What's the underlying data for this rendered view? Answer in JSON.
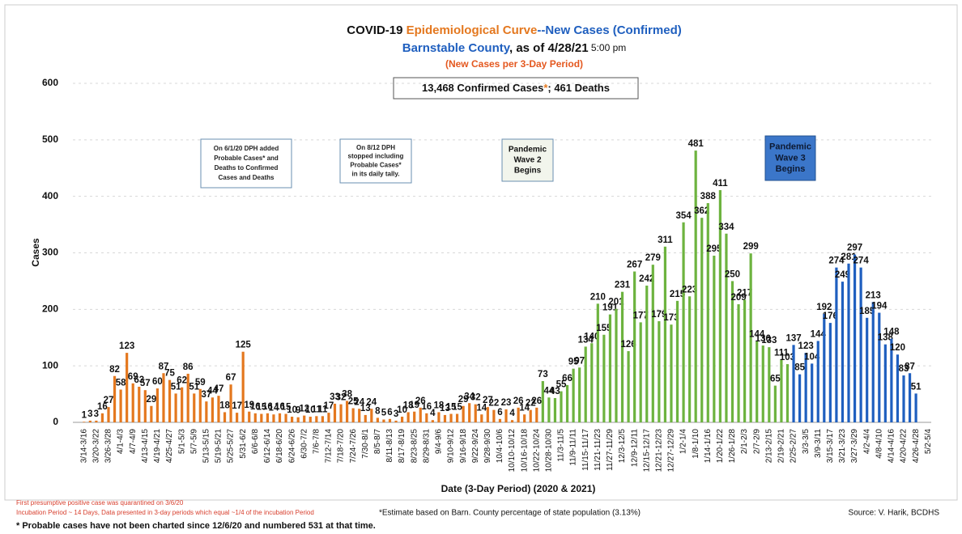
{
  "chart_data": {
    "type": "bar",
    "title": [
      "COVID-19 ",
      "Epidemiological Curve",
      "--",
      "New Cases",
      " (Confirmed)"
    ],
    "subtitle": [
      "Barnstable County",
      ", as of 4/28/21",
      " 5:00 pm"
    ],
    "note": "(New Cases per 3-Day Period)",
    "summary": [
      "13,468 Confirmed Cases",
      "*",
      "; 461 Deaths"
    ],
    "y_label": "Cases",
    "x_label": "Date (3-Day Period) (2020 & 2021)",
    "annotations": [
      {
        "lines": [
          "On 6/1/20 DPH added",
          "Probable Cases* and",
          "Deaths to Confirmed",
          "Cases and Deaths"
        ],
        "style": "plain"
      },
      {
        "lines": [
          "On 8/12 DPH",
          "stopped including",
          "Probable Cases*",
          "in its daily tally."
        ],
        "style": "plain"
      },
      {
        "lines": [
          "Pandemic",
          "Wave 2",
          "Begins"
        ],
        "style": "wave2"
      },
      {
        "lines": [
          "Pandemic",
          "Wave 3",
          "Begins"
        ],
        "style": "wave3"
      }
    ],
    "footnotes": [
      "First presumptive positive case was quarantined on 3/6/20",
      "Incubation Period ~ 14 Days, Data presented in 3-day periods which equal ~1/4 of the incubation Period",
      "*Estimate based on Barn. County percentage of state population (3.13%)",
      "* Probable cases have not been charted since 12/6/20 and numbered 531 at that time."
    ],
    "source": "Source: V. Harik, BCDHS",
    "ylim": [
      0,
      600
    ],
    "yticks": [
      0,
      100,
      200,
      300,
      400,
      500,
      600
    ],
    "grid": true,
    "categories": [
      "3/14-3/16",
      null,
      "3/20-3/22",
      null,
      "3/26-3/28",
      null,
      "4/1-4/3",
      null,
      "4/7-4/9",
      null,
      "4/13-4/15",
      null,
      "4/19-4/21",
      null,
      "4/25-4/27",
      null,
      "5/1-5/3",
      null,
      "5/7-5/9",
      null,
      "5/13-5/15",
      null,
      "5/19-5/21",
      null,
      "5/25-5/27",
      null,
      "5/31-6/2",
      null,
      "6/6-6/8",
      null,
      "6/12-6/14",
      null,
      "6/18-6/20",
      null,
      "6/24-6/26",
      null,
      "6/30-7/2",
      null,
      "7/6-7/8",
      null,
      "7/12-7/14",
      null,
      "7/18-7/20",
      null,
      "7/24-7/26",
      null,
      "7/30-8/1",
      null,
      "8/5-8/7",
      null,
      "8/11-8/13",
      null,
      "8/17-8/19",
      null,
      "8/23-8/25",
      null,
      "8/29-8/31",
      null,
      "9/4-9/6",
      null,
      "9/10-9/12",
      null,
      "9/16-9/18",
      null,
      "9/22-9/24",
      null,
      "9/28-9/30",
      null,
      "10/4-10/6",
      null,
      "10/10-10/12",
      null,
      "10/16-10/18",
      null,
      "10/22-10/24",
      null,
      "10/28-10/30",
      null,
      "11/3-11/5",
      null,
      "11/9-11/11",
      null,
      "11/15-11/17",
      null,
      "11/21-11/23",
      null,
      "11/27-11/29",
      null,
      "12/3-12/5",
      null,
      "12/9-12/11",
      null,
      "12/15-12/17",
      null,
      "12/21-12/23",
      null,
      "12/27-12/29",
      null,
      "1/2-1/4",
      null,
      "1/8-1/10",
      null,
      "1/14-1/16",
      null,
      "1/20-1/22",
      null,
      "1/26-1/28",
      null,
      "2/1-2/3",
      null,
      "2/7-2/9",
      null,
      "2/13-2/15",
      null,
      "2/19-2/21",
      null,
      "2/25-2/27",
      null,
      "3/3-3/5",
      null,
      "3/9-3/11",
      null,
      "3/15-3/17",
      null,
      "3/21-3/23",
      null,
      "3/27-3/29",
      null,
      "4/2-4/4",
      null,
      "4/8-4/10",
      null,
      "4/14-4/16",
      null,
      "4/20-4/22",
      null,
      "4/26-4/28",
      null,
      "5/2-5/4"
    ],
    "values": [
      1,
      3,
      3,
      16,
      27,
      82,
      58,
      123,
      69,
      63,
      57,
      29,
      60,
      87,
      75,
      51,
      62,
      86,
      51,
      59,
      37,
      44,
      47,
      18,
      67,
      17,
      125,
      19,
      16,
      15,
      16,
      14,
      16,
      15,
      10,
      9,
      12,
      10,
      11,
      11,
      17,
      33,
      32,
      38,
      25,
      24,
      13,
      24,
      8,
      5,
      6,
      3,
      10,
      18,
      19,
      26,
      16,
      4,
      18,
      13,
      15,
      15,
      29,
      34,
      32,
      14,
      27,
      22,
      6,
      23,
      4,
      26,
      14,
      22,
      26,
      73,
      44,
      43,
      55,
      66,
      95,
      97,
      134,
      140,
      210,
      155,
      191,
      201,
      231,
      126,
      267,
      177,
      242,
      279,
      179,
      311,
      173,
      215,
      354,
      223,
      481,
      362,
      388,
      295,
      411,
      334,
      250,
      209,
      217,
      299,
      144,
      136,
      133,
      65,
      111,
      103,
      137,
      85,
      123,
      104,
      144,
      192,
      176,
      274,
      249,
      281,
      297,
      274,
      185,
      213,
      194,
      138,
      148,
      120,
      83,
      87,
      51,
      null,
      null
    ],
    "colors": [
      "#e4781f",
      "#e4781f",
      "#e4781f",
      "#e4781f",
      "#e4781f",
      "#e4781f",
      "#e4781f",
      "#e4781f",
      "#e4781f",
      "#e4781f",
      "#e4781f",
      "#e4781f",
      "#e4781f",
      "#e4781f",
      "#e4781f",
      "#e4781f",
      "#e4781f",
      "#e4781f",
      "#e4781f",
      "#e4781f",
      "#e4781f",
      "#e4781f",
      "#e4781f",
      "#e4781f",
      "#e4781f",
      "#e4781f",
      "#e4781f",
      "#e4781f",
      "#e4781f",
      "#e4781f",
      "#e4781f",
      "#e4781f",
      "#e4781f",
      "#e4781f",
      "#e4781f",
      "#e4781f",
      "#e4781f",
      "#e4781f",
      "#e4781f",
      "#e4781f",
      "#e4781f",
      "#e4781f",
      "#e4781f",
      "#e4781f",
      "#e4781f",
      "#e4781f",
      "#e4781f",
      "#e4781f",
      "#e4781f",
      "#e4781f",
      "#e4781f",
      "#e4781f",
      "#e4781f",
      "#e4781f",
      "#e4781f",
      "#e4781f",
      "#e4781f",
      "#e4781f",
      "#e4781f",
      "#e4781f",
      "#e4781f",
      "#e4781f",
      "#e4781f",
      "#e4781f",
      "#e4781f",
      "#e4781f",
      "#e4781f",
      "#e4781f",
      "#e4781f",
      "#e4781f",
      "#e4781f",
      "#e4781f",
      "#e4781f",
      "#e4781f",
      "#e4781f",
      "#6db33f",
      "#6db33f",
      "#6db33f",
      "#6db33f",
      "#6db33f",
      "#6db33f",
      "#6db33f",
      "#6db33f",
      "#6db33f",
      "#6db33f",
      "#6db33f",
      "#6db33f",
      "#6db33f",
      "#6db33f",
      "#6db33f",
      "#6db33f",
      "#6db33f",
      "#6db33f",
      "#6db33f",
      "#6db33f",
      "#6db33f",
      "#6db33f",
      "#6db33f",
      "#6db33f",
      "#6db33f",
      "#6db33f",
      "#6db33f",
      "#6db33f",
      "#6db33f",
      "#6db33f",
      "#6db33f",
      "#6db33f",
      "#6db33f",
      "#6db33f",
      "#6db33f",
      "#6db33f",
      "#6db33f",
      "#6db33f",
      "#6db33f",
      "#6db33f",
      "#6db33f",
      "#1f5fbf",
      "#1f5fbf",
      "#1f5fbf",
      "#1f5fbf",
      "#1f5fbf",
      "#1f5fbf",
      "#1f5fbf",
      "#1f5fbf",
      "#1f5fbf",
      "#1f5fbf",
      "#1f5fbf",
      "#1f5fbf",
      "#1f5fbf",
      "#1f5fbf",
      "#1f5fbf",
      "#1f5fbf",
      "#1f5fbf",
      "#1f5fbf",
      "#1f5fbf",
      "#1f5fbf",
      "#1f5fbf",
      "#1f5fbf",
      "#1f5fbf"
    ]
  }
}
